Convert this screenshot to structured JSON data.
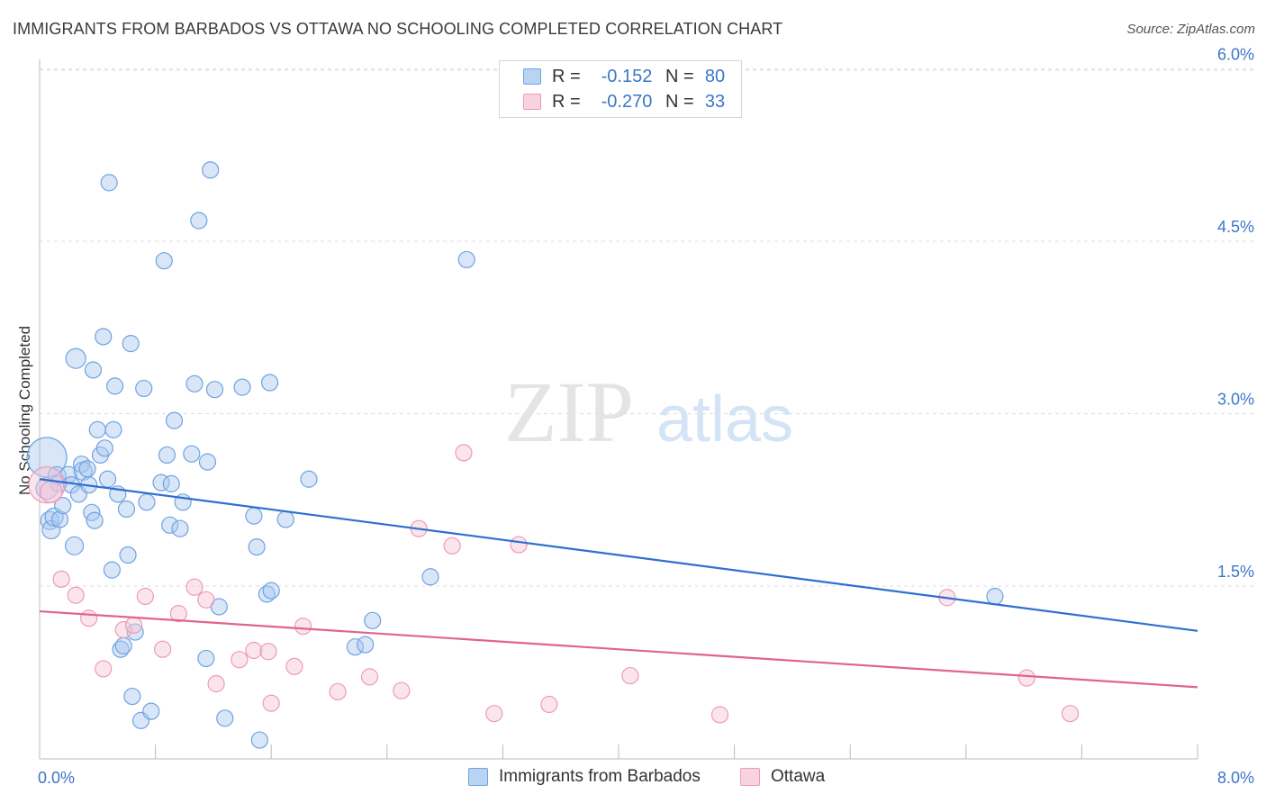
{
  "chart_data": {
    "type": "scatter",
    "title": "IMMIGRANTS FROM BARBADOS VS OTTAWA NO SCHOOLING COMPLETED CORRELATION CHART",
    "source": "Source: ZipAtlas.com",
    "xlabel": "",
    "ylabel": "No Schooling Completed",
    "xlim": [
      0,
      8
    ],
    "ylim": [
      0,
      6.3
    ],
    "x_tick_labels": {
      "left": "0.0%",
      "right": "8.0%"
    },
    "y_ticks": [
      {
        "value": 1.5,
        "label": "1.5%"
      },
      {
        "value": 3.0,
        "label": "3.0%"
      },
      {
        "value": 4.5,
        "label": "4.5%"
      },
      {
        "value": 6.0,
        "label": "6.0%"
      }
    ],
    "watermark": {
      "zip": "ZIP",
      "atlas": "atlas"
    },
    "legend_stats": [
      {
        "r_label": "R =",
        "r_value": "-0.152",
        "n_label": "N =",
        "n_value": "80"
      },
      {
        "r_label": "R =",
        "r_value": "-0.270",
        "n_label": "N =",
        "n_value": "33"
      }
    ],
    "series": [
      {
        "name": "Immigrants from Barbados",
        "color": "#6fa3e3",
        "fill": "#a9c8f0",
        "trend_color": "#2f6fd1",
        "trend": [
          [
            0,
            2.43
          ],
          [
            8,
            1.11
          ]
        ],
        "points": [
          [
            0.05,
            2.62,
            22
          ],
          [
            0.05,
            2.35,
            12
          ],
          [
            0.07,
            2.07,
            10
          ],
          [
            0.08,
            1.99,
            10
          ],
          [
            0.1,
            2.1,
            10
          ],
          [
            0.12,
            2.46,
            10
          ],
          [
            0.13,
            2.39,
            9
          ],
          [
            0.14,
            2.08,
            9
          ],
          [
            0.16,
            2.2,
            9
          ],
          [
            0.2,
            2.47,
            9
          ],
          [
            0.22,
            2.38,
            9
          ],
          [
            0.24,
            1.85,
            10
          ],
          [
            0.25,
            3.48,
            11
          ],
          [
            0.27,
            2.3,
            9
          ],
          [
            0.29,
            2.56,
            9
          ],
          [
            0.3,
            2.5,
            10
          ],
          [
            0.33,
            2.52,
            9
          ],
          [
            0.34,
            2.38,
            9
          ],
          [
            0.37,
            3.38,
            9
          ],
          [
            0.36,
            2.14,
            9
          ],
          [
            0.38,
            2.07,
            9
          ],
          [
            0.4,
            2.86,
            9
          ],
          [
            0.42,
            2.64,
            9
          ],
          [
            0.44,
            3.67,
            9
          ],
          [
            0.45,
            2.7,
            9
          ],
          [
            0.47,
            2.43,
            9
          ],
          [
            0.48,
            5.01,
            9
          ],
          [
            0.5,
            1.64,
            9
          ],
          [
            0.51,
            2.86,
            9
          ],
          [
            0.52,
            3.24,
            9
          ],
          [
            0.54,
            2.3,
            9
          ],
          [
            0.56,
            0.95,
            9
          ],
          [
            0.58,
            0.98,
            9
          ],
          [
            0.6,
            2.17,
            9
          ],
          [
            0.61,
            1.77,
            9
          ],
          [
            0.63,
            3.61,
            9
          ],
          [
            0.64,
            0.54,
            9
          ],
          [
            0.66,
            1.1,
            9
          ],
          [
            0.7,
            0.33,
            9
          ],
          [
            0.72,
            3.22,
            9
          ],
          [
            0.74,
            2.23,
            9
          ],
          [
            0.77,
            0.41,
            9
          ],
          [
            0.84,
            2.4,
            9
          ],
          [
            0.86,
            4.33,
            9
          ],
          [
            0.88,
            2.64,
            9
          ],
          [
            0.9,
            2.03,
            9
          ],
          [
            0.91,
            2.39,
            9
          ],
          [
            0.93,
            2.94,
            9
          ],
          [
            0.97,
            2.0,
            9
          ],
          [
            0.99,
            2.23,
            9
          ],
          [
            1.05,
            2.65,
            9
          ],
          [
            1.07,
            3.26,
            9
          ],
          [
            1.1,
            4.68,
            9
          ],
          [
            1.15,
            0.87,
            9
          ],
          [
            1.16,
            2.58,
            9
          ],
          [
            1.18,
            5.12,
            9
          ],
          [
            1.21,
            3.21,
            9
          ],
          [
            1.24,
            1.32,
            9
          ],
          [
            1.28,
            0.35,
            9
          ],
          [
            1.4,
            3.23,
            9
          ],
          [
            1.48,
            2.11,
            9
          ],
          [
            1.5,
            1.84,
            9
          ],
          [
            1.52,
            0.16,
            9
          ],
          [
            1.57,
            1.43,
            9
          ],
          [
            1.59,
            3.27,
            9
          ],
          [
            1.6,
            1.46,
            9
          ],
          [
            1.7,
            2.08,
            9
          ],
          [
            1.86,
            2.43,
            9
          ],
          [
            2.18,
            0.97,
            9
          ],
          [
            2.25,
            0.99,
            9
          ],
          [
            2.3,
            1.2,
            9
          ],
          [
            2.7,
            1.58,
            9
          ],
          [
            2.95,
            4.34,
            9
          ],
          [
            6.6,
            1.41,
            9
          ]
        ]
      },
      {
        "name": "Ottawa",
        "color": "#ee9ab8",
        "fill": "#f7c5d6",
        "trend_color": "#e0648e",
        "trend": [
          [
            0,
            1.28
          ],
          [
            8,
            0.62
          ]
        ],
        "points": [
          [
            0.05,
            2.38,
            20
          ],
          [
            0.08,
            2.32,
            12
          ],
          [
            0.15,
            1.56,
            9
          ],
          [
            0.25,
            1.42,
            9
          ],
          [
            0.34,
            1.22,
            9
          ],
          [
            0.44,
            0.78,
            9
          ],
          [
            0.58,
            1.12,
            9
          ],
          [
            0.65,
            1.16,
            9
          ],
          [
            0.73,
            1.41,
            9
          ],
          [
            0.85,
            0.95,
            9
          ],
          [
            0.96,
            1.26,
            9
          ],
          [
            1.07,
            1.49,
            9
          ],
          [
            1.15,
            1.38,
            9
          ],
          [
            1.22,
            0.65,
            9
          ],
          [
            1.38,
            0.86,
            9
          ],
          [
            1.48,
            0.94,
            9
          ],
          [
            1.58,
            0.93,
            9
          ],
          [
            1.6,
            0.48,
            9
          ],
          [
            1.76,
            0.8,
            9
          ],
          [
            1.82,
            1.15,
            9
          ],
          [
            2.06,
            0.58,
            9
          ],
          [
            2.28,
            0.71,
            9
          ],
          [
            2.5,
            0.59,
            9
          ],
          [
            2.62,
            2.0,
            9
          ],
          [
            2.85,
            1.85,
            9
          ],
          [
            2.93,
            2.66,
            9
          ],
          [
            3.14,
            0.39,
            9
          ],
          [
            3.31,
            1.86,
            9
          ],
          [
            3.52,
            0.47,
            9
          ],
          [
            4.08,
            0.72,
            9
          ],
          [
            4.7,
            0.38,
            9
          ],
          [
            6.27,
            1.4,
            9
          ],
          [
            6.82,
            0.7,
            9
          ],
          [
            7.12,
            0.39,
            9
          ]
        ]
      }
    ]
  }
}
